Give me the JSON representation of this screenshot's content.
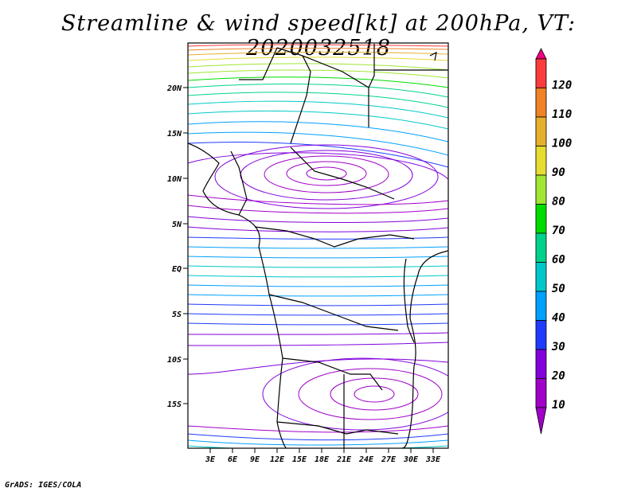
{
  "title": "Streamline & wind speed[kt] at 200hPa, VT: 2020032518",
  "credit": "GrADS: IGES/COLA",
  "map": {
    "lat_labels": [
      "20N",
      "15N",
      "10N",
      "5N",
      "EQ",
      "5S",
      "10S",
      "15S"
    ],
    "lon_labels": [
      "3E",
      "6E",
      "9E",
      "12E",
      "15E",
      "18E",
      "21E",
      "24E",
      "27E",
      "30E",
      "33E"
    ]
  },
  "colorbar": {
    "labels": [
      "10",
      "20",
      "30",
      "40",
      "50",
      "60",
      "70",
      "80",
      "90",
      "100",
      "110",
      "120"
    ],
    "colors": [
      "#a000c8",
      "#8200dc",
      "#1e3cff",
      "#00a0ff",
      "#00c8c8",
      "#00d28c",
      "#00dc00",
      "#a0e632",
      "#e6dc32",
      "#e6af2d",
      "#f08228",
      "#fa3c3c",
      "#f00082"
    ]
  }
}
